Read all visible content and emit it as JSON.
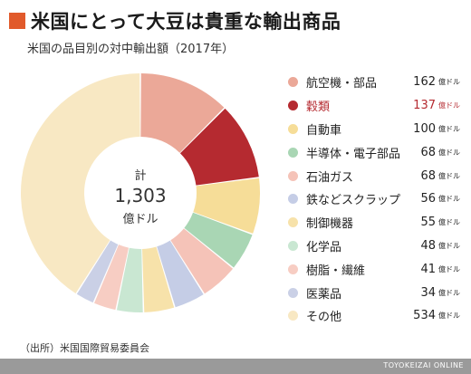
{
  "header": {
    "title": "米国にとって大豆は貴重な輸出商品",
    "subtitle": "米国の品目別の対中輸出額（2017年）",
    "accent_color": "#e15a2b"
  },
  "center": {
    "line1": "計",
    "line2": "1,303",
    "line3": "億ドル"
  },
  "chart_data": {
    "type": "pie",
    "variant": "donut",
    "unit": "億ドル",
    "total": 1303,
    "highlight_index": 1,
    "categories": [
      "航空機・部品",
      "穀類",
      "自動車",
      "半導体・電子部品",
      "石油ガス",
      "鉄などスクラップ",
      "制御機器",
      "化学品",
      "樹脂・繊維",
      "医薬品",
      "その他"
    ],
    "values": [
      162,
      137,
      100,
      68,
      68,
      56,
      55,
      48,
      41,
      34,
      534
    ],
    "colors": [
      "#eba898",
      "#b52a30",
      "#f6dd98",
      "#a9d6b4",
      "#f5c3b8",
      "#c5cde6",
      "#f7e2aa",
      "#c9e7d2",
      "#f7cdc3",
      "#cad0e6",
      "#f8e8c3"
    ],
    "legend_position": "right"
  },
  "legend_unit": "億ドル",
  "source": "（出所）米国国際貿易委員会",
  "footer": "TOYOKEIZAI ONLINE"
}
